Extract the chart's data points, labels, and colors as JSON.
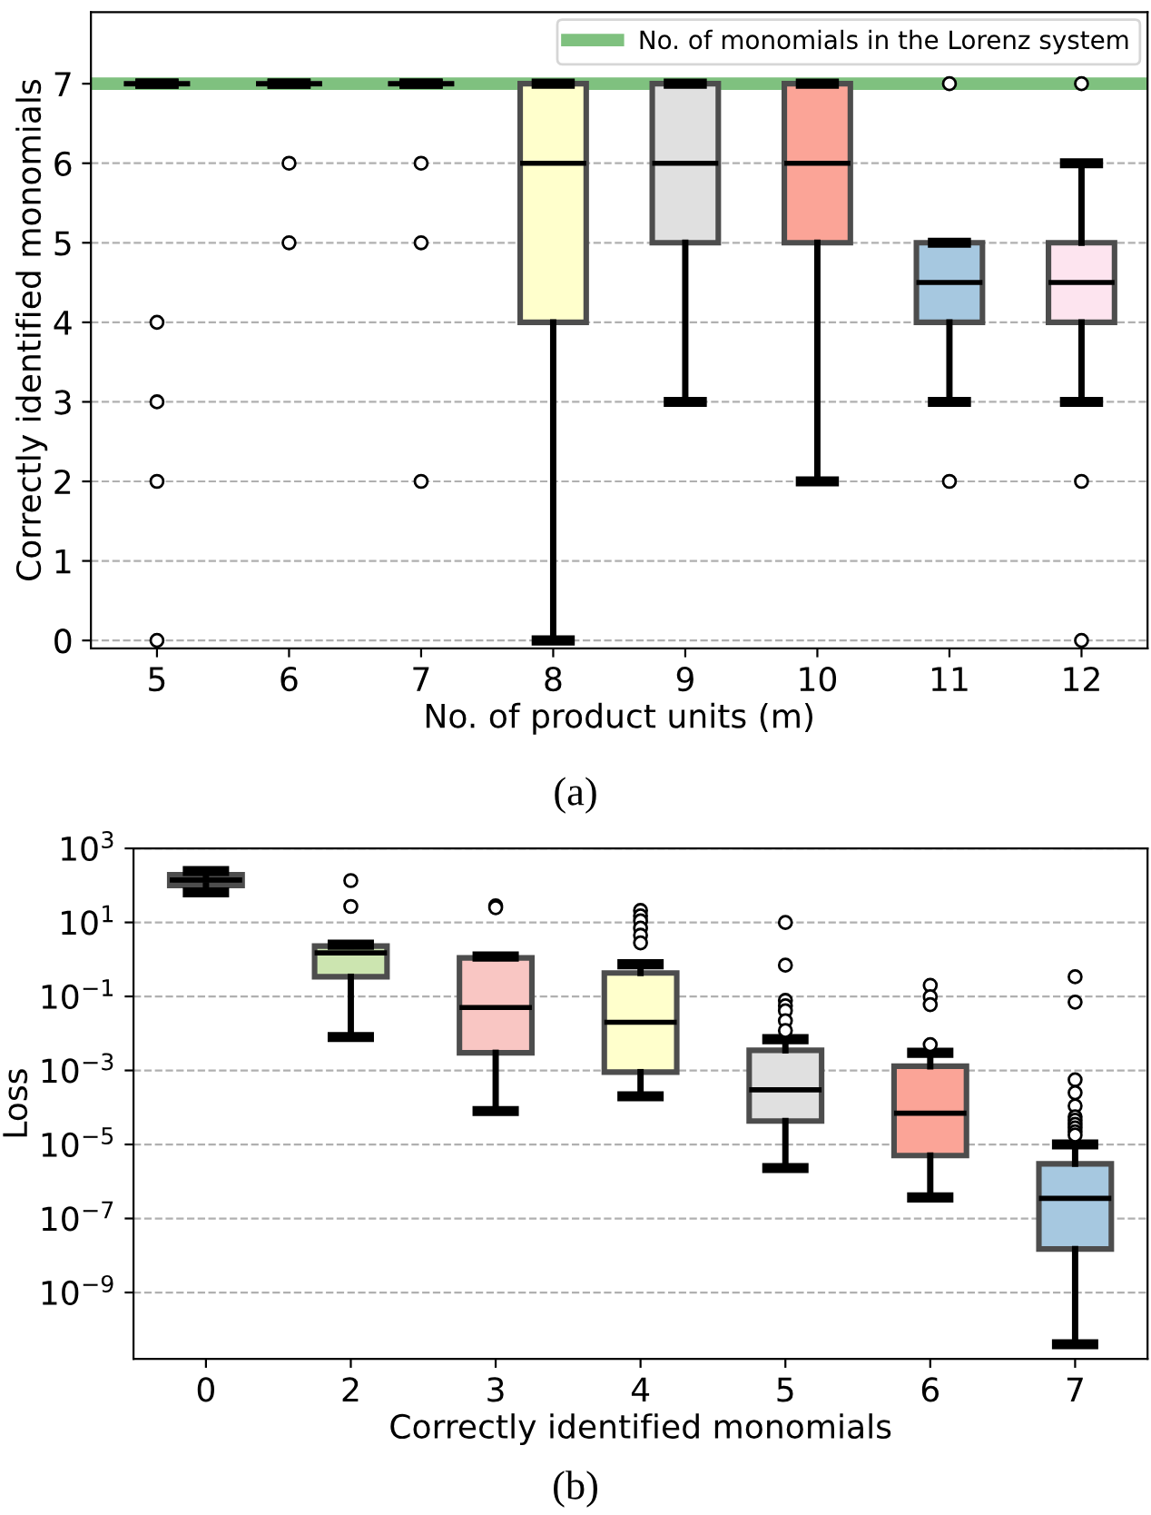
{
  "chart_data": [
    {
      "type": "box",
      "xlabel": "No. of product units (m)",
      "ylabel": "Correctly identified monomials",
      "categories": [
        "5",
        "6",
        "7",
        "8",
        "9",
        "10",
        "11",
        "12"
      ],
      "colors": [
        "#4d4d4d",
        "#4d4d4d",
        "#4d4d4d",
        "#ffffcc",
        "#e0e0e0",
        "#fba497",
        "#a6c8e0",
        "#fde4ef"
      ],
      "boxes": [
        {
          "low": 7,
          "q1": 7,
          "median": 7,
          "q3": 7,
          "high": 7,
          "outliers": [
            4,
            3,
            2,
            0
          ]
        },
        {
          "low": 7,
          "q1": 7,
          "median": 7,
          "q3": 7,
          "high": 7,
          "outliers": [
            6,
            5
          ]
        },
        {
          "low": 7,
          "q1": 7,
          "median": 7,
          "q3": 7,
          "high": 7,
          "outliers": [
            6,
            5,
            2
          ]
        },
        {
          "low": 0,
          "q1": 4,
          "median": 6,
          "q3": 7,
          "high": 7
        },
        {
          "low": 3,
          "q1": 5,
          "median": 6,
          "q3": 7,
          "high": 7
        },
        {
          "low": 2,
          "q1": 5,
          "median": 6,
          "q3": 7,
          "high": 7
        },
        {
          "low": 3,
          "q1": 4,
          "median": 4.5,
          "q3": 5,
          "high": 5,
          "outliers": [
            7,
            2
          ]
        },
        {
          "low": 3,
          "q1": 4,
          "median": 4.5,
          "q3": 5,
          "high": 6,
          "outliers": [
            7,
            2,
            0
          ]
        }
      ],
      "ylim": [
        -0.1,
        7.9
      ],
      "yticks": [
        0,
        1,
        2,
        3,
        4,
        5,
        6,
        7
      ],
      "grid": "y",
      "legend": "top right",
      "ref_lines": [
        {
          "axis": "y",
          "value": 7,
          "label": "No. of monomials in the Lorenz system",
          "color": "#7fc17f"
        }
      ],
      "annotations": [
        "(a)"
      ]
    },
    {
      "type": "box",
      "xlabel": "Correctly identified monomials",
      "ylabel": "Loss",
      "log": "y",
      "categories": [
        "0",
        "2",
        "3",
        "4",
        "5",
        "6",
        "7"
      ],
      "colors": [
        "#3a3a3a",
        "#cce5b0",
        "#f9c6c3",
        "#ffffcc",
        "#e0e0e0",
        "#fba497",
        "#a6c8e0"
      ],
      "boxes": [
        {
          "low": 65,
          "q1": 100,
          "median": 140,
          "q3": 195,
          "high": 245
        },
        {
          "low": 0.008,
          "q1": 0.34,
          "median": 1.5,
          "q3": 2.3,
          "high": 2.5,
          "outliers": [
            135,
            27
          ]
        },
        {
          "low": 8e-05,
          "q1": 0.003,
          "median": 0.05,
          "q3": 1.1,
          "high": 1.2,
          "outliers": [
            28,
            25
          ]
        },
        {
          "low": 0.0002,
          "q1": 0.0009,
          "median": 0.02,
          "q3": 0.43,
          "high": 0.74,
          "outliers": [
            21,
            15,
            11,
            7,
            4.5,
            2.8
          ]
        },
        {
          "low": 2.3e-06,
          "q1": 4.3e-05,
          "median": 0.0003,
          "q3": 0.0035,
          "high": 0.007,
          "outliers": [
            10,
            0.7,
            0.078,
            0.056,
            0.041,
            0.022,
            0.012
          ]
        },
        {
          "low": 3.7e-07,
          "q1": 5e-06,
          "median": 7e-05,
          "q3": 0.0013,
          "high": 0.003,
          "outliers": [
            0.2,
            0.098,
            0.06,
            0.005
          ]
        },
        {
          "low": 4e-11,
          "q1": 1.5e-08,
          "median": 3.5e-07,
          "q3": 3e-06,
          "high": 1e-05,
          "outliers": [
            0.34,
            0.07,
            0.00056,
            0.00025,
            0.00011,
            5.6e-05,
            4.5e-05,
            3.5e-05,
            2.8e-05,
            2.2e-05,
            1.8e-05
          ]
        }
      ],
      "ylim": [
        1.6e-11,
        1000
      ],
      "yticks": [
        {
          "value": 1000,
          "label": "10$^{3}$"
        },
        {
          "value": 10,
          "label": "10$^{1}$"
        },
        {
          "value": 0.1,
          "label": "10$^{−1}$"
        },
        {
          "value": 0.001,
          "label": "10$^{−3}$"
        },
        {
          "value": 1e-05,
          "label": "10$^{−5}$"
        },
        {
          "value": 1e-07,
          "label": "10$^{−7}$"
        },
        {
          "value": 1e-09,
          "label": "10$^{−9}$"
        }
      ],
      "grid": "y",
      "annotations": [
        "(b)"
      ]
    }
  ]
}
